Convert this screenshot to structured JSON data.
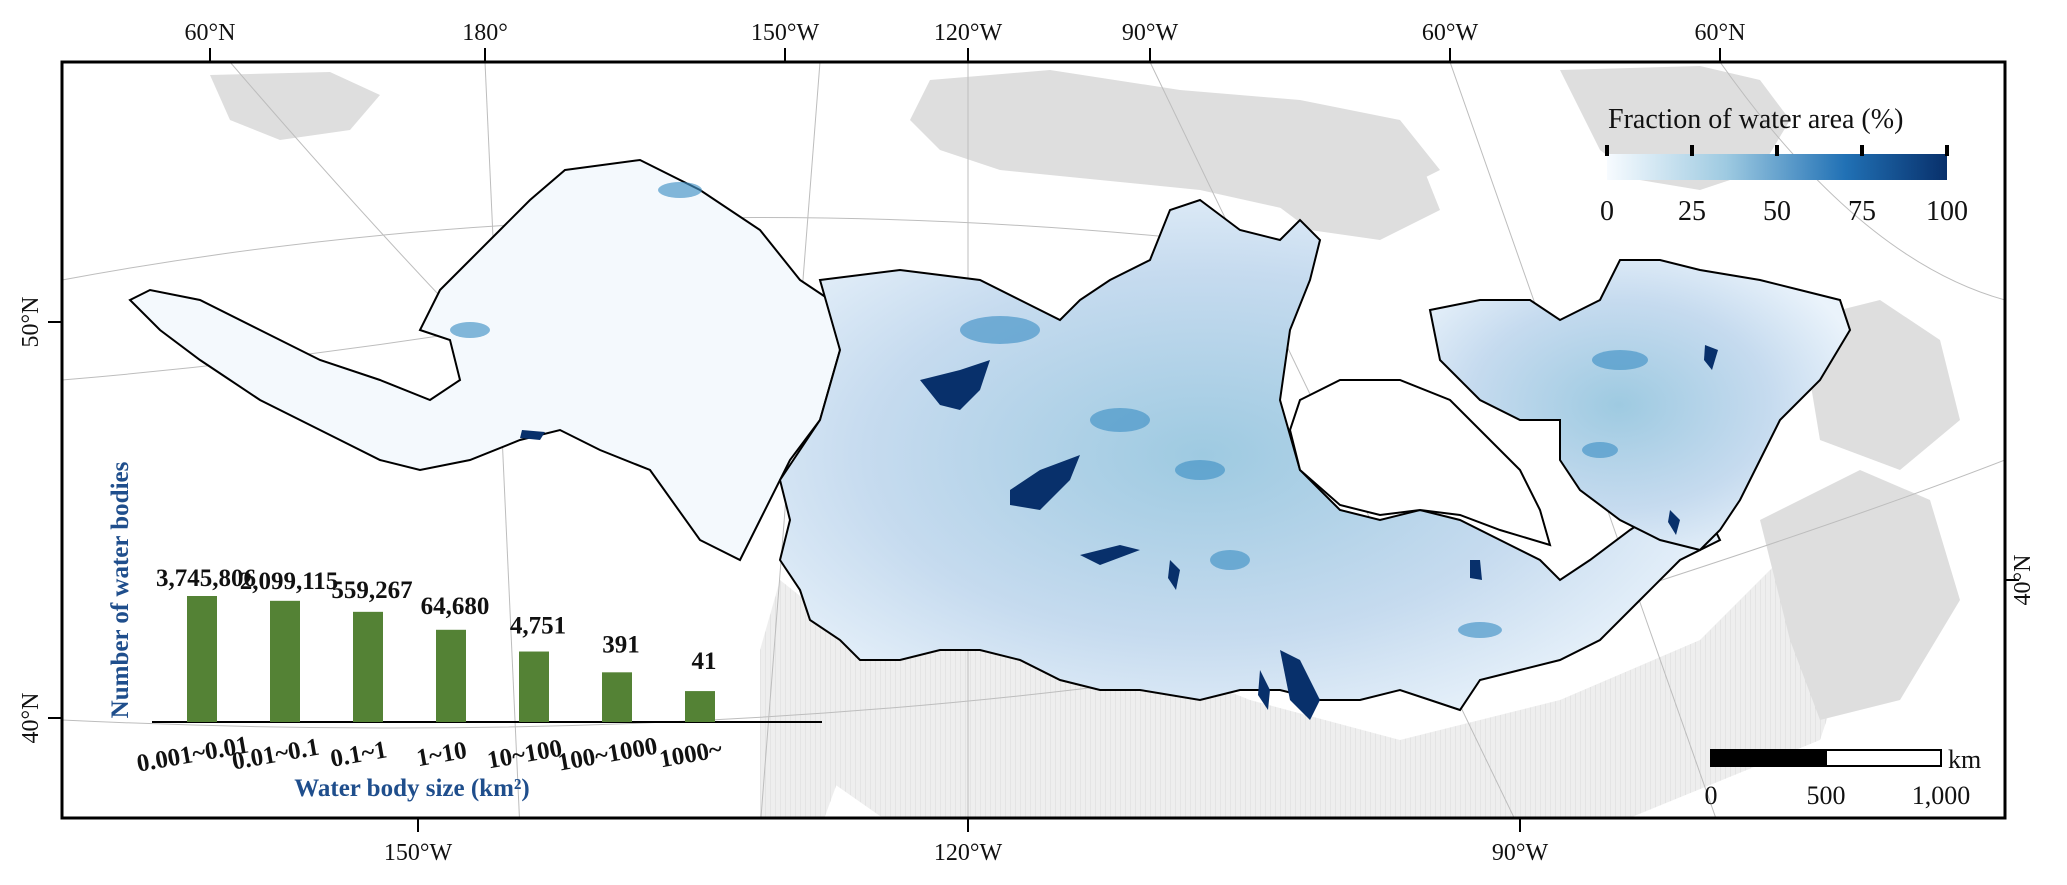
{
  "coords": {
    "top": [
      "60°N",
      "180°",
      "150°W",
      "120°W",
      "90°W",
      "60°W",
      "60°N"
    ],
    "bottom": [
      "150°W",
      "120°W",
      "90°W"
    ],
    "left": [
      "50°N",
      "40°N"
    ],
    "right": [
      "40°N"
    ]
  },
  "legend": {
    "title": "Fraction of water area (%)",
    "ticks": [
      "0",
      "25",
      "50",
      "75",
      "100"
    ],
    "color_low": "#f7fbff",
    "color_high": "#08306b"
  },
  "colors": {
    "land_background": "#dedede",
    "water_region_light": "#c6dbef",
    "water_region_mid": "#6baed6",
    "lake_dark": "#08306b",
    "bar_fill": "#548235",
    "axis_title": "#1f4e8c"
  },
  "chart_data": {
    "type": "bar",
    "categories": [
      "0.001~0.01",
      "0.01~0.1",
      "0.1~1",
      "1~10",
      "10~100",
      "100~1000",
      "1000~"
    ],
    "values": [
      3745806,
      2099115,
      559267,
      64680,
      4751,
      391,
      41
    ],
    "value_labels": [
      "3,745,806",
      "2,099,115",
      "559,267",
      "64,680",
      "4,751",
      "391",
      "41"
    ],
    "xlabel": "Water body size (km²)",
    "ylabel": "Number of water bodies",
    "yscale": "log"
  },
  "scale_bar": {
    "unit": "km",
    "ticks": [
      "0",
      "500",
      "1,000"
    ]
  }
}
